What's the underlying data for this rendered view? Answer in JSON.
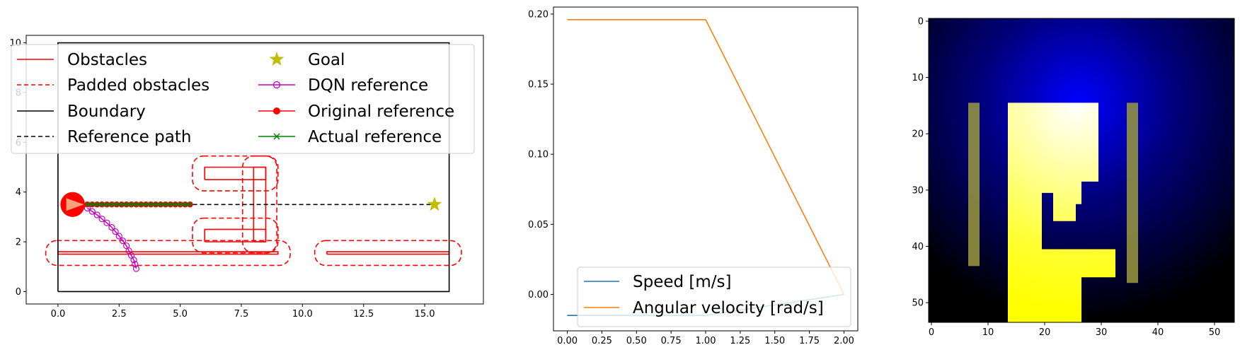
{
  "chart_data": [
    {
      "type": "line",
      "subplot": "map",
      "xlim": [
        -1.3,
        17.4
      ],
      "ylim": [
        -0.5,
        10.3
      ],
      "xticks": [
        0.0,
        2.5,
        5.0,
        7.5,
        10.0,
        12.5,
        15.0
      ],
      "xtick_labels": [
        "0.0",
        "2.5",
        "5.0",
        "7.5",
        "10.0",
        "12.5",
        "15.0"
      ],
      "yticks": [
        0,
        2,
        4,
        6,
        8,
        10
      ],
      "ytick_labels": [
        "0",
        "2",
        "4",
        "6",
        "8",
        "10"
      ],
      "boundary": [
        [
          0,
          0
        ],
        [
          16,
          0
        ],
        [
          16,
          10
        ],
        [
          0,
          10
        ],
        [
          0,
          0
        ]
      ],
      "obstacles": [
        [
          [
            0,
            1.5
          ],
          [
            9,
            1.5
          ],
          [
            9,
            1.6
          ],
          [
            0,
            1.6
          ],
          [
            0,
            1.5
          ]
        ],
        [
          [
            11,
            1.5
          ],
          [
            16,
            1.5
          ],
          [
            16,
            1.6
          ],
          [
            11,
            1.6
          ],
          [
            11,
            1.5
          ]
        ],
        [
          [
            6,
            2.0
          ],
          [
            8.5,
            2.0
          ],
          [
            8.5,
            2.5
          ],
          [
            6,
            2.5
          ],
          [
            6,
            2.0
          ]
        ],
        [
          [
            6,
            4.5
          ],
          [
            8.5,
            4.5
          ],
          [
            8.5,
            5.0
          ],
          [
            6,
            5.0
          ],
          [
            6,
            4.5
          ]
        ],
        [
          [
            8,
            2.0
          ],
          [
            8.5,
            2.0
          ],
          [
            8.5,
            5.0
          ],
          [
            8,
            5.0
          ],
          [
            8,
            2.0
          ]
        ]
      ],
      "padded_obstacles": [
        [
          [
            -0.5,
            1.05
          ],
          [
            9.5,
            1.05
          ],
          [
            9.5,
            2.05
          ],
          [
            -0.5,
            2.05
          ],
          [
            -0.5,
            1.05
          ]
        ],
        [
          [
            10.5,
            1.05
          ],
          [
            16.5,
            1.05
          ],
          [
            16.5,
            2.05
          ],
          [
            10.5,
            2.05
          ],
          [
            10.5,
            1.05
          ]
        ],
        [
          [
            5.5,
            1.55
          ],
          [
            9.0,
            1.55
          ],
          [
            9.0,
            2.95
          ],
          [
            5.5,
            2.95
          ],
          [
            5.5,
            1.55
          ]
        ],
        [
          [
            5.5,
            4.05
          ],
          [
            9.0,
            4.05
          ],
          [
            9.0,
            5.45
          ],
          [
            5.5,
            5.45
          ],
          [
            5.5,
            4.05
          ]
        ],
        [
          [
            7.55,
            1.55
          ],
          [
            8.95,
            1.55
          ],
          [
            8.95,
            5.45
          ],
          [
            7.55,
            5.45
          ],
          [
            7.55,
            1.55
          ]
        ]
      ],
      "reference_path": [
        [
          0.6,
          3.5
        ],
        [
          15.4,
          3.5
        ]
      ],
      "goal": [
        15.4,
        3.5
      ],
      "robot": {
        "position": [
          0.6,
          3.5
        ],
        "radius": 0.5
      },
      "dqn_reference": {
        "x": [
          1.2,
          1.4,
          1.6,
          1.8,
          2.0,
          2.2,
          2.35,
          2.5,
          2.65,
          2.8,
          2.9,
          3.0,
          3.1,
          3.15,
          3.2
        ],
        "y": [
          3.35,
          3.22,
          3.08,
          2.92,
          2.76,
          2.58,
          2.41,
          2.23,
          2.04,
          1.84,
          1.64,
          1.45,
          1.27,
          1.1,
          0.92
        ]
      },
      "original_reference": {
        "x": [
          1.2,
          1.4,
          1.6,
          1.8,
          2.0,
          2.2,
          2.4,
          2.6,
          2.8,
          3.0,
          3.2,
          3.4,
          3.6,
          3.8,
          4.0,
          4.2,
          4.4,
          4.6,
          4.8,
          5.0,
          5.2,
          5.4
        ],
        "y": [
          3.5,
          3.5,
          3.5,
          3.5,
          3.5,
          3.5,
          3.5,
          3.5,
          3.5,
          3.5,
          3.5,
          3.5,
          3.5,
          3.5,
          3.5,
          3.5,
          3.5,
          3.5,
          3.5,
          3.5,
          3.5,
          3.5
        ]
      },
      "actual_reference": {
        "x": [
          1.2,
          1.4,
          1.6,
          1.8,
          2.0,
          2.2,
          2.4,
          2.6,
          2.8,
          3.0,
          3.2,
          3.4,
          3.6,
          3.8,
          4.0,
          4.2,
          4.4,
          4.6,
          4.8,
          5.0,
          5.2,
          5.4
        ],
        "y": [
          3.5,
          3.5,
          3.5,
          3.5,
          3.5,
          3.5,
          3.5,
          3.5,
          3.5,
          3.5,
          3.5,
          3.5,
          3.5,
          3.5,
          3.5,
          3.5,
          3.5,
          3.5,
          3.5,
          3.5,
          3.5,
          3.5
        ]
      },
      "legend": {
        "placement": "upper left, two columns, overlapping the axes",
        "entries": [
          {
            "label": "Obstacles",
            "style": "solid-line",
            "color": "#ff0000"
          },
          {
            "label": "Padded obstacles",
            "style": "dashed-line",
            "color": "#ff0000"
          },
          {
            "label": "Boundary",
            "style": "solid-line",
            "color": "#000000"
          },
          {
            "label": "Reference path",
            "style": "dashed-line",
            "color": "#000000"
          },
          {
            "label": "Goal",
            "style": "star-marker",
            "color": "#bfbf00"
          },
          {
            "label": "DQN reference",
            "style": "line-open-circle",
            "color": "#bf00bf"
          },
          {
            "label": "Original reference",
            "style": "line-filled-circle",
            "color": "#ff0000"
          },
          {
            "label": "Actual reference",
            "style": "line-x-marker",
            "color": "#008000"
          }
        ]
      }
    },
    {
      "type": "line",
      "subplot": "controls",
      "xlim": [
        -0.1,
        2.1
      ],
      "ylim": [
        -0.026,
        0.205
      ],
      "xticks": [
        0.0,
        0.25,
        0.5,
        0.75,
        1.0,
        1.25,
        1.5,
        1.75,
        2.0
      ],
      "xtick_labels": [
        "0.00",
        "0.25",
        "0.50",
        "0.75",
        "1.00",
        "1.25",
        "1.50",
        "1.75",
        "2.00"
      ],
      "yticks": [
        0.0,
        0.05,
        0.1,
        0.15,
        0.2
      ],
      "ytick_labels": [
        "0.00",
        "0.05",
        "0.10",
        "0.15",
        "0.20"
      ],
      "series": [
        {
          "name": "Speed [m/s]",
          "color": "#1f77b4",
          "x": [
            0,
            1,
            2
          ],
          "y": [
            -0.015,
            -0.015,
            0.0
          ]
        },
        {
          "name": "Angular velocity [rad/s]",
          "color": "#ff7f0e",
          "x": [
            0,
            1,
            2
          ],
          "y": [
            0.196,
            0.196,
            0.0
          ]
        }
      ],
      "legend": {
        "placement": "lower right"
      }
    },
    {
      "type": "heatmap",
      "subplot": "image",
      "xlim": [
        -0.5,
        53.5
      ],
      "ylim": [
        53.5,
        -0.5
      ],
      "xticks": [
        0,
        10,
        20,
        30,
        40,
        50
      ],
      "xtick_labels": [
        "0",
        "10",
        "20",
        "30",
        "40",
        "50"
      ],
      "yticks": [
        0,
        10,
        20,
        30,
        40,
        50
      ],
      "ytick_labels": [
        "0",
        "10",
        "20",
        "30",
        "40",
        "50"
      ],
      "background": {
        "color": "#0000ff",
        "center": [
          26,
          15
        ],
        "fades_to": "#000000"
      },
      "free_region": [
        [
          14,
          15
        ],
        [
          30,
          15
        ],
        [
          30,
          29
        ],
        [
          27,
          29
        ],
        [
          27,
          33
        ],
        [
          26,
          33
        ],
        [
          26,
          36
        ],
        [
          22,
          36
        ],
        [
          22,
          31
        ],
        [
          20,
          31
        ],
        [
          20,
          41
        ],
        [
          33,
          41
        ],
        [
          33,
          46
        ],
        [
          27,
          46
        ],
        [
          27,
          54
        ],
        [
          14,
          54
        ],
        [
          14,
          15
        ]
      ],
      "padding_walls": [
        [
          [
            7,
            15
          ],
          [
            9,
            15
          ],
          [
            9,
            44
          ],
          [
            7,
            44
          ],
          [
            7,
            15
          ]
        ],
        [
          [
            35,
            15
          ],
          [
            37,
            15
          ],
          [
            37,
            47
          ],
          [
            35,
            47
          ],
          [
            35,
            15
          ]
        ]
      ]
    }
  ]
}
